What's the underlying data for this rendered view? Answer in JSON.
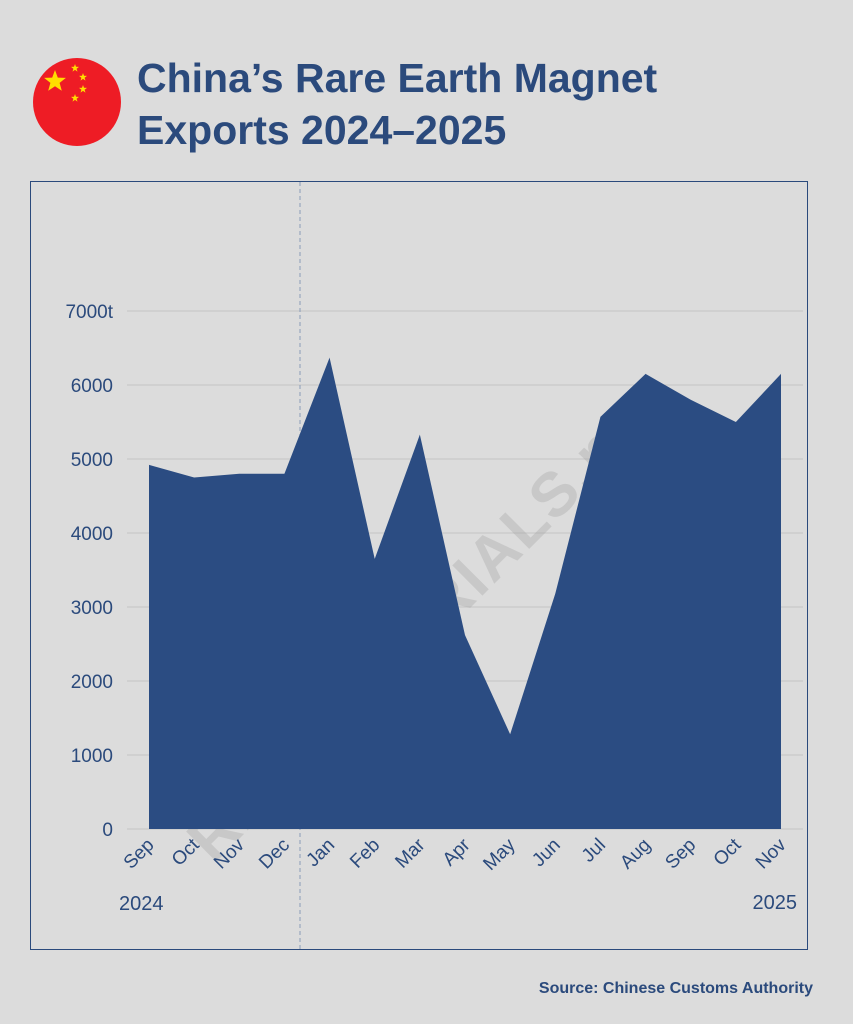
{
  "header": {
    "title_line1": "China’s Rare Earth Magnet",
    "title_line2": "Exports 2024–2025",
    "flag_icon": "china-flag-icon"
  },
  "source": "Source: Chinese Customs Authority",
  "watermark": "RAWMATERIALS.net",
  "colors": {
    "background": "#dcdcdc",
    "accent": "#2b4a7c",
    "area_fill": "#2b4c82",
    "flag_red": "#ee1c25",
    "flag_star": "#ffde00"
  },
  "chart_data": {
    "type": "area",
    "categories": [
      "Sep",
      "Oct",
      "Nov",
      "Dec",
      "Jan",
      "Feb",
      "Mar",
      "Apr",
      "May",
      "Jun",
      "Jul",
      "Aug",
      "Sep",
      "Oct",
      "Nov"
    ],
    "values": [
      4920,
      4750,
      4800,
      4800,
      6370,
      3650,
      5330,
      2620,
      1280,
      3180,
      5570,
      6150,
      5800,
      5500,
      6150
    ],
    "y_tick_labels": [
      "0",
      "1000",
      "2000",
      "3000",
      "4000",
      "5000",
      "6000",
      "7000t"
    ],
    "ylim": [
      0,
      7000
    ],
    "year_labels": [
      "2024",
      "2025"
    ],
    "year_divider_after": "Dec",
    "grid": true,
    "title": "",
    "xlabel": "",
    "ylabel": ""
  }
}
